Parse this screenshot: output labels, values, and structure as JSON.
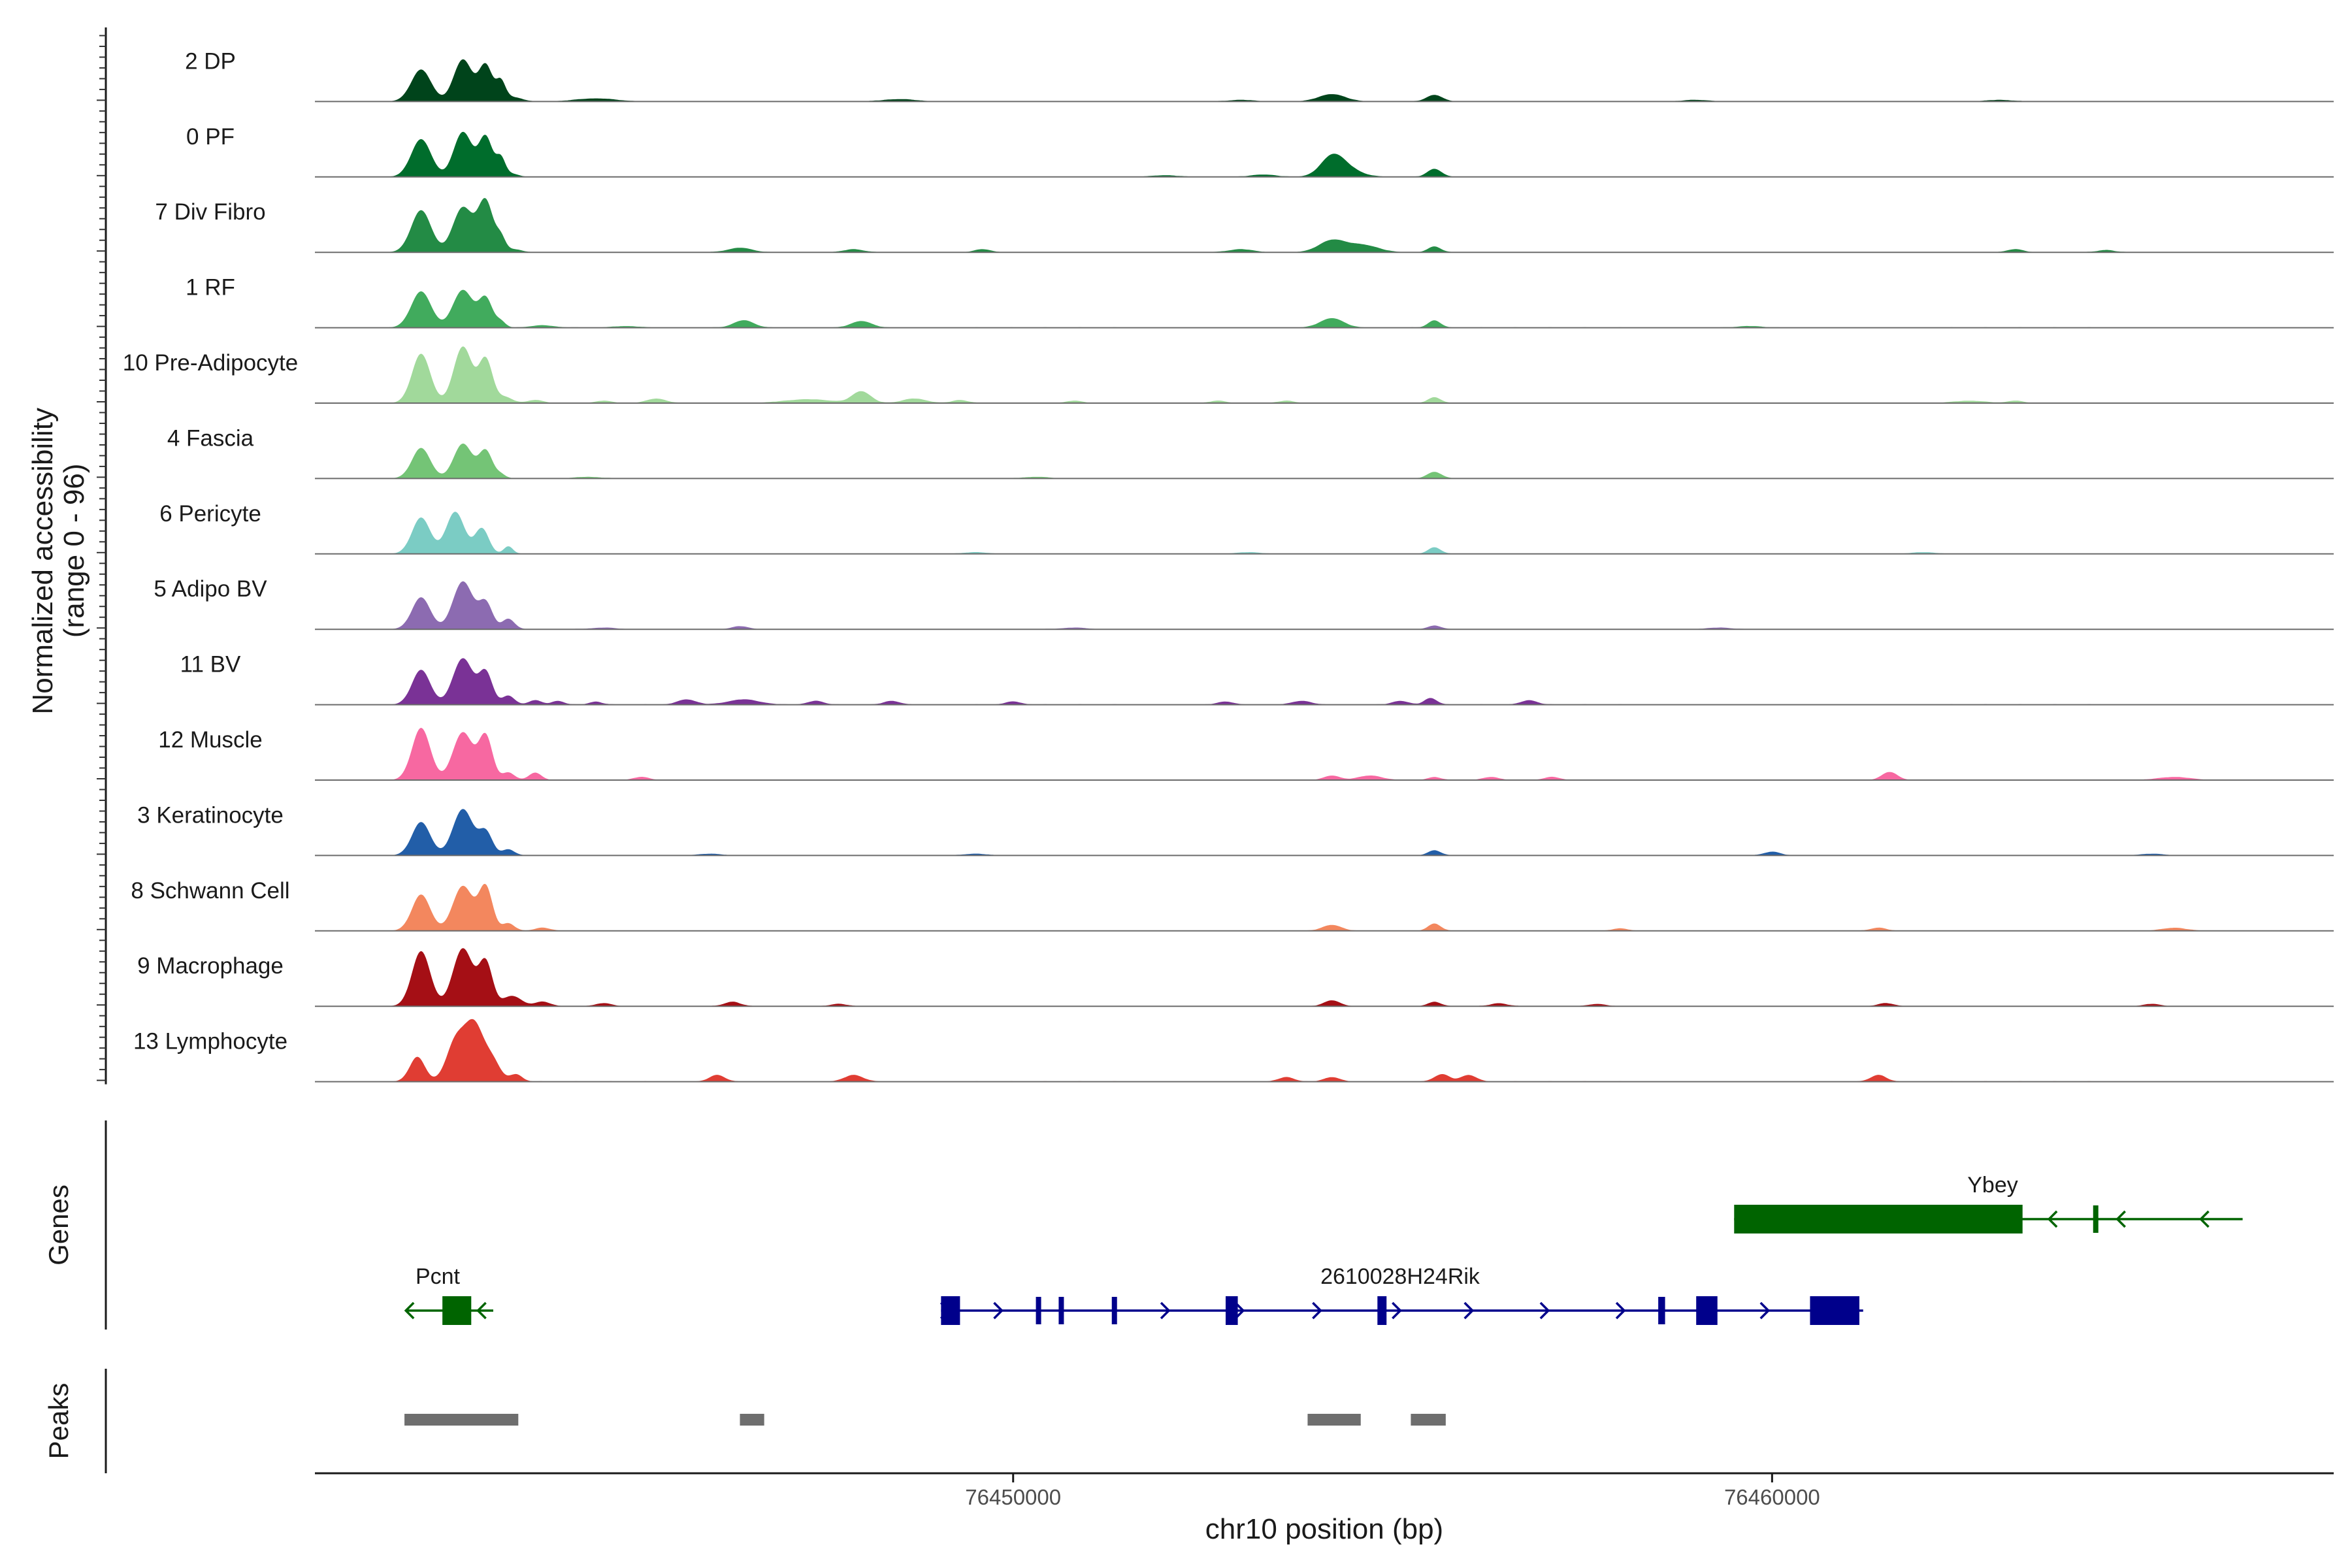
{
  "chart_data": {
    "type": "area",
    "title": "",
    "ylabel": "Normalized accessibility",
    "ylabel_range": "(range 0 - 96)",
    "y_range": [
      0,
      96
    ],
    "xlabel": "chr10 position (bp)",
    "x_range": [
      76440800,
      76467400
    ],
    "x_ticks": [
      76450000,
      76460000
    ],
    "tracks": [
      {
        "name": "2 DP",
        "color": "#00441b",
        "peaks": [
          [
            76442200,
            44,
            130
          ],
          [
            76442750,
            58,
            120
          ],
          [
            76443050,
            50,
            90
          ],
          [
            76443250,
            25,
            60
          ],
          [
            76443400,
            6,
            120
          ],
          [
            76444500,
            4,
            250
          ],
          [
            76448500,
            3,
            200
          ],
          [
            76454200,
            10,
            170
          ],
          [
            76455550,
            9,
            100
          ],
          [
            76453000,
            2,
            150
          ],
          [
            76459000,
            2,
            150
          ],
          [
            76463000,
            2,
            150
          ]
        ]
      },
      {
        "name": "0 PF",
        "color": "#006d2c",
        "peaks": [
          [
            76442200,
            52,
            130
          ],
          [
            76442750,
            62,
            120
          ],
          [
            76443050,
            55,
            90
          ],
          [
            76443250,
            25,
            60
          ],
          [
            76443400,
            4,
            80
          ],
          [
            76454200,
            26,
            150
          ],
          [
            76454400,
            10,
            180
          ],
          [
            76455550,
            11,
            90
          ],
          [
            76453300,
            3,
            150
          ],
          [
            76452000,
            2,
            150
          ]
        ]
      },
      {
        "name": "7 Div Fibro",
        "color": "#238b45",
        "peaks": [
          [
            76442200,
            58,
            130
          ],
          [
            76442750,
            62,
            130
          ],
          [
            76443050,
            70,
            100
          ],
          [
            76443250,
            18,
            60
          ],
          [
            76443420,
            4,
            100
          ],
          [
            76446400,
            6,
            150
          ],
          [
            76447900,
            4,
            120
          ],
          [
            76449600,
            4,
            100
          ],
          [
            76454200,
            16,
            170
          ],
          [
            76454600,
            10,
            200
          ],
          [
            76455550,
            8,
            80
          ],
          [
            76453000,
            4,
            150
          ],
          [
            76463200,
            4,
            100
          ],
          [
            76464400,
            3,
            100
          ]
        ]
      },
      {
        "name": "1 RF",
        "color": "#41ab5d",
        "peaks": [
          [
            76442200,
            50,
            130
          ],
          [
            76442750,
            52,
            130
          ],
          [
            76443050,
            40,
            90
          ],
          [
            76443250,
            8,
            60
          ],
          [
            76443800,
            3,
            150
          ],
          [
            76446450,
            10,
            130
          ],
          [
            76448000,
            9,
            130
          ],
          [
            76454200,
            13,
            150
          ],
          [
            76455550,
            10,
            80
          ],
          [
            76444900,
            2,
            150
          ],
          [
            76459700,
            2,
            150
          ]
        ]
      },
      {
        "name": "10 Pre-Adipocyte",
        "color": "#a1d99b",
        "peaks": [
          [
            76442200,
            68,
            120
          ],
          [
            76442750,
            78,
            120
          ],
          [
            76443050,
            60,
            90
          ],
          [
            76443300,
            8,
            100
          ],
          [
            76443700,
            4,
            100
          ],
          [
            76444600,
            3,
            100
          ],
          [
            76445300,
            6,
            120
          ],
          [
            76447300,
            5,
            300
          ],
          [
            76448000,
            16,
            120
          ],
          [
            76448700,
            6,
            150
          ],
          [
            76449300,
            4,
            100
          ],
          [
            76450800,
            3,
            100
          ],
          [
            76452700,
            3,
            100
          ],
          [
            76453600,
            3,
            100
          ],
          [
            76455550,
            8,
            80
          ],
          [
            76462600,
            3,
            200
          ],
          [
            76463200,
            3,
            100
          ]
        ]
      },
      {
        "name": "4 Fascia",
        "color": "#74c476",
        "peaks": [
          [
            76442200,
            42,
            120
          ],
          [
            76442750,
            48,
            120
          ],
          [
            76443050,
            38,
            90
          ],
          [
            76443250,
            5,
            60
          ],
          [
            76455550,
            9,
            90
          ],
          [
            76444400,
            2,
            150
          ],
          [
            76450300,
            2,
            150
          ]
        ]
      },
      {
        "name": "6 Pericyte",
        "color": "#7bccc4",
        "peaks": [
          [
            76442200,
            50,
            120
          ],
          [
            76442650,
            58,
            120
          ],
          [
            76443000,
            35,
            90
          ],
          [
            76443350,
            10,
            60
          ],
          [
            76455550,
            9,
            80
          ],
          [
            76449500,
            2,
            150
          ],
          [
            76453100,
            2,
            150
          ],
          [
            76462000,
            2,
            150
          ]
        ]
      },
      {
        "name": "5 Adipo BV",
        "color": "#8c6bb1",
        "peaks": [
          [
            76442200,
            44,
            120
          ],
          [
            76442750,
            66,
            130
          ],
          [
            76443050,
            36,
            90
          ],
          [
            76443350,
            14,
            80
          ],
          [
            76446400,
            4,
            100
          ],
          [
            76455550,
            5,
            80
          ],
          [
            76444600,
            2,
            150
          ],
          [
            76450800,
            2,
            150
          ],
          [
            76459300,
            2,
            150
          ]
        ]
      },
      {
        "name": "11 BV",
        "color": "#7a3296",
        "peaks": [
          [
            76442200,
            48,
            120
          ],
          [
            76442750,
            64,
            130
          ],
          [
            76443050,
            44,
            90
          ],
          [
            76443350,
            12,
            80
          ],
          [
            76443700,
            6,
            80
          ],
          [
            76444000,
            5,
            80
          ],
          [
            76444500,
            4,
            80
          ],
          [
            76445700,
            7,
            120
          ],
          [
            76446450,
            7,
            200
          ],
          [
            76447400,
            5,
            100
          ],
          [
            76448400,
            5,
            100
          ],
          [
            76450000,
            4,
            100
          ],
          [
            76452800,
            4,
            100
          ],
          [
            76453800,
            5,
            120
          ],
          [
            76455500,
            9,
            80
          ],
          [
            76455100,
            5,
            100
          ],
          [
            76456800,
            6,
            100
          ]
        ]
      },
      {
        "name": "12 Muscle",
        "color": "#f768a1",
        "peaks": [
          [
            76442200,
            72,
            120
          ],
          [
            76442750,
            66,
            130
          ],
          [
            76443050,
            60,
            90
          ],
          [
            76443350,
            10,
            80
          ],
          [
            76443700,
            10,
            80
          ],
          [
            76445100,
            4,
            100
          ],
          [
            76454200,
            6,
            100
          ],
          [
            76454700,
            6,
            150
          ],
          [
            76455550,
            4,
            80
          ],
          [
            76456300,
            4,
            100
          ],
          [
            76457100,
            4,
            100
          ],
          [
            76461550,
            11,
            100
          ],
          [
            76465300,
            4,
            200
          ]
        ]
      },
      {
        "name": "3 Keratinocyte",
        "color": "#225ea8",
        "peaks": [
          [
            76442200,
            46,
            120
          ],
          [
            76442750,
            64,
            130
          ],
          [
            76443050,
            32,
            90
          ],
          [
            76443350,
            8,
            80
          ],
          [
            76455550,
            7,
            80
          ],
          [
            76460000,
            5,
            100
          ],
          [
            76446000,
            2,
            150
          ],
          [
            76449500,
            2,
            150
          ],
          [
            76465000,
            2,
            150
          ]
        ]
      },
      {
        "name": "8 Schwann Cell",
        "color": "#f3875e",
        "peaks": [
          [
            76442200,
            50,
            120
          ],
          [
            76442750,
            62,
            130
          ],
          [
            76443050,
            60,
            90
          ],
          [
            76443350,
            10,
            80
          ],
          [
            76443800,
            4,
            100
          ],
          [
            76454200,
            8,
            120
          ],
          [
            76455550,
            10,
            80
          ],
          [
            76458000,
            3,
            100
          ],
          [
            76461400,
            4,
            100
          ],
          [
            76465300,
            4,
            150
          ]
        ]
      },
      {
        "name": "9 Macrophage",
        "color": "#a50f15",
        "peaks": [
          [
            76442200,
            76,
            120
          ],
          [
            76442750,
            80,
            130
          ],
          [
            76443050,
            60,
            90
          ],
          [
            76443400,
            14,
            120
          ],
          [
            76443800,
            6,
            100
          ],
          [
            76444600,
            4,
            100
          ],
          [
            76446300,
            6,
            100
          ],
          [
            76447700,
            3,
            100
          ],
          [
            76454200,
            8,
            100
          ],
          [
            76455550,
            6,
            80
          ],
          [
            76456400,
            4,
            100
          ],
          [
            76457700,
            3,
            100
          ],
          [
            76461500,
            4,
            100
          ],
          [
            76465000,
            3,
            100
          ]
        ]
      },
      {
        "name": "13 Lymphocyte",
        "color": "#e03d33",
        "peaks": [
          [
            76442150,
            34,
            100
          ],
          [
            76442650,
            52,
            120
          ],
          [
            76442900,
            78,
            130
          ],
          [
            76443150,
            24,
            100
          ],
          [
            76443450,
            10,
            80
          ],
          [
            76446100,
            9,
            100
          ],
          [
            76447900,
            9,
            120
          ],
          [
            76453600,
            6,
            100
          ],
          [
            76454200,
            6,
            100
          ],
          [
            76455650,
            10,
            100
          ],
          [
            76456000,
            9,
            100
          ],
          [
            76461400,
            9,
            100
          ]
        ]
      }
    ],
    "genes": [
      {
        "name": "Ybey",
        "strand": "-",
        "color": "#006400",
        "start": 76459500,
        "end": 76466200,
        "exons": [
          [
            76459500,
            76463300
          ],
          [
            76464230,
            76464290
          ]
        ],
        "arrows": [
          76463700,
          76464600,
          76465700
        ]
      },
      {
        "name": "Pcnt",
        "strand": "-",
        "color": "#006400",
        "start": 76442000,
        "end": 76443150,
        "exons": [
          [
            76442480,
            76442860
          ]
        ],
        "arrows": [
          76442050,
          76443000
        ]
      },
      {
        "name": "2610028H24Rik",
        "strand": "+",
        "color": "#00008b",
        "start": 76449050,
        "end": 76461200,
        "exons": [
          [
            76449050,
            76449300
          ],
          [
            76450300,
            76450350
          ],
          [
            76450600,
            76450640
          ],
          [
            76451300,
            76451360
          ],
          [
            76452800,
            76452960
          ],
          [
            76454800,
            76454920
          ],
          [
            76458500,
            76458590
          ],
          [
            76459000,
            76459280
          ],
          [
            76460500,
            76461150
          ]
        ],
        "arrows": [
          76449100,
          76449800,
          76452000,
          76452980,
          76454000,
          76455050,
          76456000,
          76457000,
          76458000,
          76459900
        ]
      }
    ],
    "gene_panel_title": "Genes",
    "peaks_panel_title": "Peaks",
    "peak_color": "#6e6e6e",
    "peak_regions": [
      [
        76441980,
        76443480
      ],
      [
        76446400,
        76446720
      ],
      [
        76453880,
        76454580
      ],
      [
        76455240,
        76455700
      ]
    ]
  }
}
